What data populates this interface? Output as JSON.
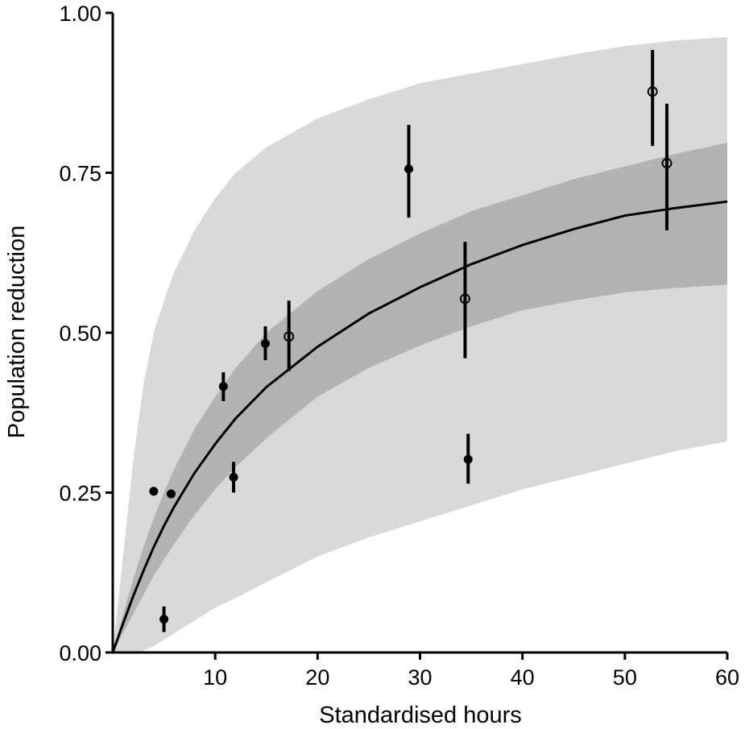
{
  "chart_data": {
    "type": "scatter",
    "title": "",
    "xlabel": "Standardised hours",
    "ylabel": "Population reduction",
    "xlim": [
      0,
      60
    ],
    "ylim": [
      0,
      1
    ],
    "xticks": [
      10,
      20,
      30,
      40,
      50,
      60
    ],
    "xtick_labels": [
      "10",
      "20",
      "30",
      "40",
      "50",
      "60"
    ],
    "yticks": [
      0,
      0.25,
      0.5,
      0.75,
      1.0
    ],
    "ytick_labels": [
      "0.00",
      "0.25",
      "0.50",
      "0.75",
      "1.00"
    ],
    "grid": false,
    "colors": {
      "outer_band": "#d9d9d9",
      "inner_band": "#b3b3b3",
      "fit_line": "#000000",
      "points": "#000000"
    },
    "fit_curve": {
      "x": [
        0,
        1,
        2,
        3,
        4,
        5,
        6,
        8,
        10,
        12,
        15,
        20,
        25,
        30,
        35,
        40,
        45,
        50,
        55,
        60
      ],
      "y": [
        0,
        0.045,
        0.088,
        0.128,
        0.165,
        0.198,
        0.228,
        0.281,
        0.326,
        0.366,
        0.415,
        0.478,
        0.53,
        0.571,
        0.607,
        0.637,
        0.662,
        0.683,
        0.695,
        0.705
      ]
    },
    "inner_band": {
      "x": [
        0,
        1,
        2,
        3,
        4,
        5,
        6,
        8,
        10,
        12,
        15,
        20,
        25,
        30,
        35,
        40,
        45,
        50,
        55,
        60
      ],
      "lower": [
        0,
        0.03,
        0.06,
        0.09,
        0.12,
        0.145,
        0.17,
        0.215,
        0.255,
        0.29,
        0.335,
        0.4,
        0.445,
        0.48,
        0.51,
        0.535,
        0.55,
        0.563,
        0.57,
        0.575
      ],
      "upper": [
        0,
        0.06,
        0.115,
        0.165,
        0.21,
        0.25,
        0.287,
        0.35,
        0.4,
        0.445,
        0.5,
        0.565,
        0.615,
        0.655,
        0.69,
        0.715,
        0.74,
        0.76,
        0.78,
        0.797
      ]
    },
    "outer_band": {
      "x": [
        0,
        1,
        2,
        3,
        4,
        5,
        6,
        8,
        10,
        12,
        15,
        20,
        25,
        30,
        35,
        40,
        45,
        50,
        55,
        60
      ],
      "lower": [
        0,
        0,
        0,
        0.003,
        0.01,
        0.02,
        0.03,
        0.05,
        0.07,
        0.085,
        0.11,
        0.15,
        0.18,
        0.205,
        0.23,
        0.255,
        0.275,
        0.295,
        0.315,
        0.33
      ],
      "upper": [
        0,
        0.15,
        0.3,
        0.42,
        0.5,
        0.55,
        0.595,
        0.66,
        0.71,
        0.75,
        0.79,
        0.835,
        0.865,
        0.89,
        0.905,
        0.92,
        0.935,
        0.948,
        0.957,
        0.962
      ]
    },
    "series": [
      {
        "marker": "filled",
        "points": [
          {
            "x": 4.0,
            "y": 0.252,
            "lo": 0.252,
            "hi": 0.252
          },
          {
            "x": 5.0,
            "y": 0.052,
            "lo": 0.032,
            "hi": 0.072
          },
          {
            "x": 5.7,
            "y": 0.248,
            "lo": 0.248,
            "hi": 0.248
          },
          {
            "x": 10.8,
            "y": 0.416,
            "lo": 0.393,
            "hi": 0.438
          },
          {
            "x": 11.8,
            "y": 0.274,
            "lo": 0.25,
            "hi": 0.298
          },
          {
            "x": 14.9,
            "y": 0.483,
            "lo": 0.457,
            "hi": 0.51
          },
          {
            "x": 28.9,
            "y": 0.756,
            "lo": 0.68,
            "hi": 0.825
          },
          {
            "x": 34.7,
            "y": 0.302,
            "lo": 0.264,
            "hi": 0.342
          }
        ]
      },
      {
        "marker": "open",
        "points": [
          {
            "x": 17.2,
            "y": 0.494,
            "lo": 0.44,
            "hi": 0.55
          },
          {
            "x": 34.4,
            "y": 0.553,
            "lo": 0.46,
            "hi": 0.642
          },
          {
            "x": 52.7,
            "y": 0.877,
            "lo": 0.792,
            "hi": 0.942
          },
          {
            "x": 54.1,
            "y": 0.765,
            "lo": 0.66,
            "hi": 0.858
          }
        ]
      }
    ]
  }
}
